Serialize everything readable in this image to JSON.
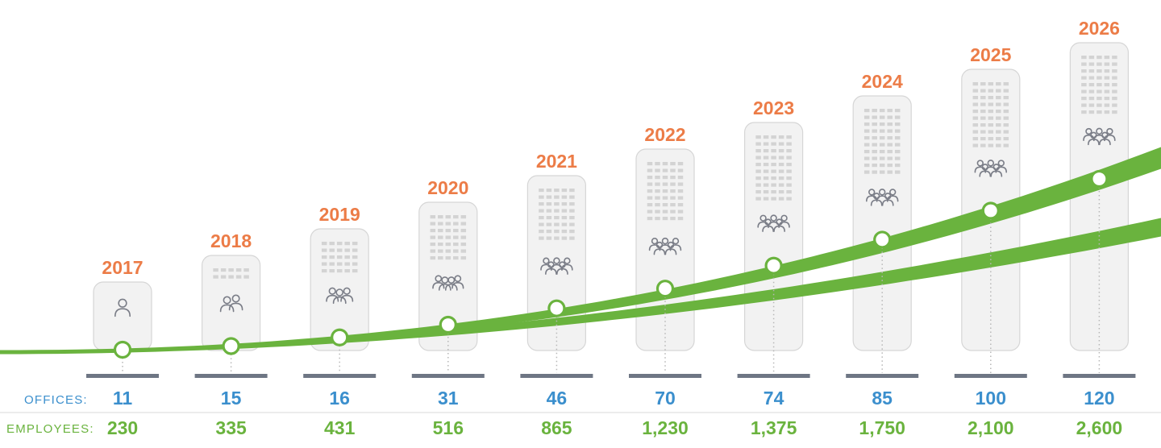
{
  "colors": {
    "year": "#ec7c47",
    "offices": "#3b8fcd",
    "employees": "#6ab33e",
    "band": "#6ab33e",
    "building_fill": "#f2f2f2",
    "building_stroke": "#d6d6d6",
    "window": "#d3d3d3",
    "people_icon": "#7a7d87",
    "base": "#6e7684",
    "dots": "#b7b7b7",
    "divider": "#d9d9d9"
  },
  "labels": {
    "offices": "OFFICES:",
    "employees": "EMPLOYEES:"
  },
  "chart_data": {
    "type": "table",
    "categories": [
      "2017",
      "2018",
      "2019",
      "2020",
      "2021",
      "2022",
      "2023",
      "2024",
      "2025",
      "2026"
    ],
    "series": [
      {
        "name": "OFFICES:",
        "values": [
          11,
          15,
          16,
          31,
          46,
          70,
          74,
          85,
          100,
          120
        ]
      },
      {
        "name": "EMPLOYEES:",
        "values": [
          230,
          335,
          431,
          516,
          865,
          1230,
          1375,
          1750,
          2100,
          2600
        ]
      }
    ],
    "display": {
      "offices": [
        "11",
        "15",
        "16",
        "31",
        "46",
        "70",
        "74",
        "85",
        "100",
        "120"
      ],
      "employees": [
        "230",
        "335",
        "431",
        "516",
        "865",
        "1,230",
        "1,375",
        "1,750",
        "2,100",
        "2,600"
      ]
    },
    "people_icons": [
      1,
      2,
      3,
      4,
      5,
      6,
      6,
      6,
      6,
      6
    ]
  }
}
